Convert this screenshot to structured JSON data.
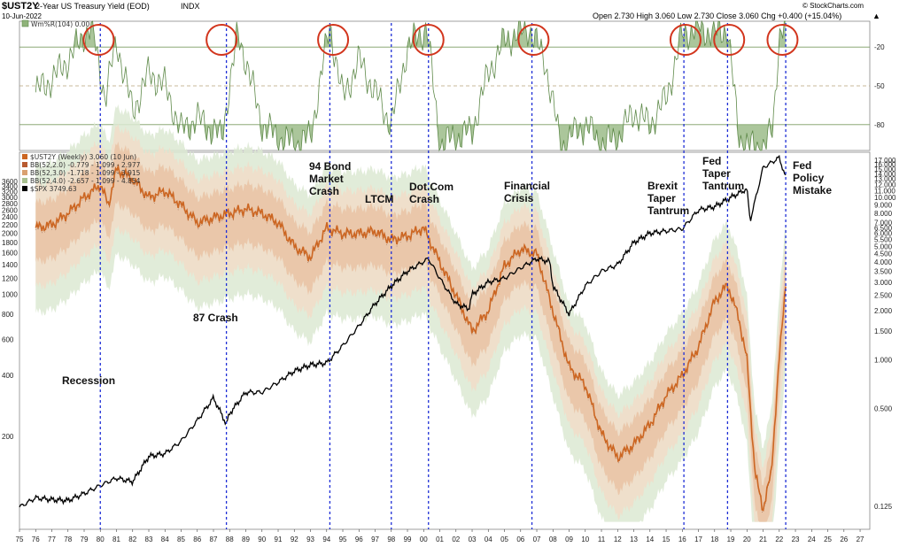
{
  "header": {
    "symbol": "$UST2Y",
    "description": "2-Year US Treasury Yield (EOD)",
    "exchange": "INDX",
    "date": "10-Jun-2022",
    "ohlc": "Open 2.730  High 3.060  Low 2.730  Close 3.060  Chg +0.400 (+15.04%)",
    "ohlc_arrow": "▲",
    "watermark": "© StockCharts.com"
  },
  "chart_data": [
    {
      "type": "line",
      "panel": "indicator",
      "legend_label": "Wm%R(104) 0.00",
      "y_ticks": [
        "-20",
        "-50",
        "-80"
      ],
      "ylim": [
        -100,
        0
      ],
      "reference_lines": [
        -20,
        -50,
        -80
      ],
      "series": [
        {
          "name": "Wm%R(104)",
          "color": "#5f8a4a",
          "x": [
            1976,
            1977,
            1978,
            1979,
            1979.5,
            1980.3,
            1981,
            1982,
            1983,
            1984,
            1985,
            1986,
            1987.5,
            1988.5,
            1989,
            1990,
            1991,
            1992,
            1993,
            1994.2,
            1995,
            1996,
            1997,
            1998,
            1999,
            2000.2,
            2001,
            2002,
            2003,
            2004,
            2005,
            2006.5,
            2007.5,
            2008.5,
            2009,
            2010,
            2011,
            2012,
            2013,
            2014,
            2015,
            2016,
            2017,
            2018,
            2018.8,
            2019.5,
            2020.3,
            2021,
            2021.6,
            2022,
            2022.4
          ],
          "values": [
            -55,
            -45,
            -30,
            -10,
            -5,
            -60,
            -15,
            -70,
            -40,
            -50,
            -85,
            -75,
            -90,
            -10,
            -30,
            -80,
            -90,
            -95,
            -90,
            -3,
            -60,
            -30,
            -55,
            -80,
            -20,
            -5,
            -95,
            -90,
            -85,
            -40,
            -15,
            -5,
            -30,
            -98,
            -90,
            -80,
            -95,
            -90,
            -70,
            -80,
            -60,
            -10,
            -5,
            -10,
            -5,
            -90,
            -98,
            -97,
            -85,
            -10,
            0
          ]
        }
      ]
    },
    {
      "type": "line",
      "panel": "main",
      "title": "$UST2Y 2-Year US Treasury Yield (EOD)",
      "x_ticks": [
        "75",
        "76",
        "77",
        "78",
        "79",
        "80",
        "81",
        "82",
        "83",
        "84",
        "85",
        "86",
        "87",
        "88",
        "89",
        "90",
        "91",
        "92",
        "93",
        "94",
        "95",
        "96",
        "97",
        "98",
        "99",
        "00",
        "01",
        "02",
        "03",
        "04",
        "05",
        "06",
        "07",
        "08",
        "09",
        "10",
        "11",
        "12",
        "13",
        "14",
        "15",
        "16",
        "17",
        "18",
        "19",
        "20",
        "21",
        "22",
        "23",
        "24",
        "25",
        "26",
        "27"
      ],
      "y_left_ticks": [
        "3600",
        "3400",
        "3200",
        "3000",
        "2800",
        "2600",
        "2400",
        "2200",
        "2000",
        "1800",
        "1600",
        "1400",
        "1200",
        "1000",
        "800",
        "600",
        "400",
        "200"
      ],
      "y_right_ticks": [
        "17.000",
        "16.000",
        "15.000",
        "14.000",
        "13.000",
        "12.000",
        "11.000",
        "10.000",
        "9.000",
        "8.000",
        "7.000",
        "6.500",
        "6.000",
        "5.500",
        "5.000",
        "4.500",
        "4.000",
        "3.500",
        "3.000",
        "2.500",
        "2.000",
        "1.500",
        "1.000",
        "0.500",
        "0.125"
      ],
      "legend": [
        {
          "label": "$UST2Y (Weekly) 3.060 (10 Jun)",
          "color": "#cc6622"
        },
        {
          "label": "BB(52,2.0) -0.779 - 1.099 - 2.977",
          "color": "#b85a30"
        },
        {
          "label": "BB(52,3.0) -1.718 - 1.099 - 3.915",
          "color": "#d9a070"
        },
        {
          "label": "BB(52,4.0) -2.657 - 1.099 - 4.854",
          "color": "#a8c090"
        },
        {
          "label": "$SPX 3749.63",
          "color": "#000000"
        }
      ],
      "annotations": [
        {
          "lines": [
            "Recession"
          ],
          "year": 1980.0
        },
        {
          "lines": [
            "87 Crash"
          ],
          "year": 1987.8
        },
        {
          "lines": [
            "94 Bond",
            "Market",
            "Crash"
          ],
          "year": 1994.2
        },
        {
          "lines": [
            "LTCM"
          ],
          "year": 1998.0
        },
        {
          "lines": [
            "Dot.Com",
            "Crash"
          ],
          "year": 2000.3
        },
        {
          "lines": [
            "Financial",
            "Crisis"
          ],
          "year": 2007.5
        },
        {
          "lines": [
            "Brexit",
            "Taper",
            "Tantrum"
          ],
          "year": 2016.5
        },
        {
          "lines": [
            "Fed",
            "Taper",
            "Tantrum"
          ],
          "year": 2018.8
        },
        {
          "lines": [
            "Fed",
            "Policy",
            "Mistake"
          ],
          "year": 2022.4
        }
      ],
      "event_lines": [
        1980.0,
        1987.8,
        1994.2,
        1998.0,
        2000.3,
        2006.7,
        2016.1,
        2018.8,
        2022.4
      ],
      "series": [
        {
          "name": "$UST2Y",
          "color": "#cc6622",
          "x": [
            1976,
            1977,
            1978,
            1979,
            1980,
            1980.5,
            1981,
            1982,
            1983,
            1984,
            1985,
            1986,
            1987,
            1988,
            1989,
            1990,
            1991,
            1992,
            1993,
            1994,
            1995,
            1996,
            1997,
            1998,
            1999,
            2000,
            2001,
            2002,
            2003,
            2004,
            2005,
            2006,
            2007,
            2008,
            2009,
            2010,
            2011,
            2012,
            2013,
            2014,
            2015,
            2016,
            2017,
            2018,
            2018.8,
            2019.5,
            2020,
            2020.5,
            2021,
            2021.5,
            2022,
            2022.4
          ],
          "values": [
            6.5,
            6.8,
            8.0,
            10.0,
            12.0,
            9.0,
            15.0,
            13.0,
            10.0,
            11.0,
            9.0,
            7.0,
            7.5,
            8.0,
            8.5,
            8.0,
            7.0,
            5.0,
            4.3,
            6.5,
            6.0,
            6.0,
            6.2,
            5.5,
            5.8,
            6.5,
            4.0,
            2.5,
            1.5,
            2.0,
            3.8,
            4.8,
            4.5,
            2.0,
            0.9,
            0.7,
            0.35,
            0.25,
            0.3,
            0.4,
            0.6,
            0.8,
            1.2,
            2.3,
            2.9,
            1.8,
            1.0,
            0.2,
            0.12,
            0.2,
            1.0,
            3.06
          ]
        },
        {
          "name": "$SPX",
          "color": "#000000",
          "x": [
            1975,
            1976,
            1977,
            1978,
            1979,
            1980,
            1981,
            1982,
            1983,
            1984,
            1985,
            1986,
            1987,
            1987.8,
            1988,
            1989,
            1990,
            1991,
            1992,
            1993,
            1994,
            1995,
            1996,
            1997,
            1998,
            1999,
            2000,
            2000.3,
            2001,
            2002,
            2002.8,
            2003,
            2004,
            2005,
            2006,
            2007,
            2007.8,
            2008,
            2009,
            2010,
            2011,
            2012,
            2013,
            2014,
            2015,
            2016,
            2017,
            2018,
            2019,
            2020,
            2020.2,
            2021,
            2022,
            2022.4
          ],
          "values": [
            90,
            100,
            98,
            97,
            105,
            115,
            125,
            120,
            160,
            165,
            190,
            240,
            310,
            230,
            260,
            330,
            330,
            370,
            420,
            450,
            460,
            560,
            700,
            900,
            1100,
            1300,
            1450,
            1500,
            1200,
            900,
            850,
            1000,
            1150,
            1200,
            1350,
            1500,
            1450,
            1100,
            800,
            1100,
            1300,
            1400,
            1800,
            2000,
            2050,
            2100,
            2600,
            2700,
            3000,
            3300,
            2300,
            4200,
            4700,
            3750
          ]
        }
      ]
    }
  ]
}
